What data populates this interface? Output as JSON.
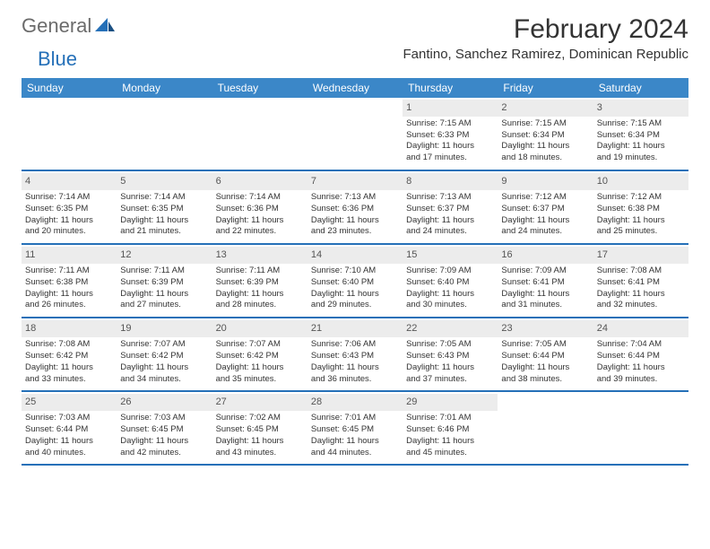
{
  "brand": {
    "word1": "General",
    "word2": "Blue"
  },
  "title": "February 2024",
  "location": "Fantino, Sanchez Ramirez, Dominican Republic",
  "colors": {
    "header_bg": "#3b87c8",
    "header_text": "#ffffff",
    "accent": "#2570b8",
    "daynum_bg": "#ececec",
    "text": "#333333",
    "logo_gray": "#6b6b6b"
  },
  "fonts": {
    "title_size": 30,
    "location_size": 15,
    "dayhead_size": 12,
    "cell_size": 9.5
  },
  "day_names": [
    "Sunday",
    "Monday",
    "Tuesday",
    "Wednesday",
    "Thursday",
    "Friday",
    "Saturday"
  ],
  "weeks": [
    [
      null,
      null,
      null,
      null,
      {
        "n": "1",
        "sr": "Sunrise: 7:15 AM",
        "ss": "Sunset: 6:33 PM",
        "d1": "Daylight: 11 hours",
        "d2": "and 17 minutes."
      },
      {
        "n": "2",
        "sr": "Sunrise: 7:15 AM",
        "ss": "Sunset: 6:34 PM",
        "d1": "Daylight: 11 hours",
        "d2": "and 18 minutes."
      },
      {
        "n": "3",
        "sr": "Sunrise: 7:15 AM",
        "ss": "Sunset: 6:34 PM",
        "d1": "Daylight: 11 hours",
        "d2": "and 19 minutes."
      }
    ],
    [
      {
        "n": "4",
        "sr": "Sunrise: 7:14 AM",
        "ss": "Sunset: 6:35 PM",
        "d1": "Daylight: 11 hours",
        "d2": "and 20 minutes."
      },
      {
        "n": "5",
        "sr": "Sunrise: 7:14 AM",
        "ss": "Sunset: 6:35 PM",
        "d1": "Daylight: 11 hours",
        "d2": "and 21 minutes."
      },
      {
        "n": "6",
        "sr": "Sunrise: 7:14 AM",
        "ss": "Sunset: 6:36 PM",
        "d1": "Daylight: 11 hours",
        "d2": "and 22 minutes."
      },
      {
        "n": "7",
        "sr": "Sunrise: 7:13 AM",
        "ss": "Sunset: 6:36 PM",
        "d1": "Daylight: 11 hours",
        "d2": "and 23 minutes."
      },
      {
        "n": "8",
        "sr": "Sunrise: 7:13 AM",
        "ss": "Sunset: 6:37 PM",
        "d1": "Daylight: 11 hours",
        "d2": "and 24 minutes."
      },
      {
        "n": "9",
        "sr": "Sunrise: 7:12 AM",
        "ss": "Sunset: 6:37 PM",
        "d1": "Daylight: 11 hours",
        "d2": "and 24 minutes."
      },
      {
        "n": "10",
        "sr": "Sunrise: 7:12 AM",
        "ss": "Sunset: 6:38 PM",
        "d1": "Daylight: 11 hours",
        "d2": "and 25 minutes."
      }
    ],
    [
      {
        "n": "11",
        "sr": "Sunrise: 7:11 AM",
        "ss": "Sunset: 6:38 PM",
        "d1": "Daylight: 11 hours",
        "d2": "and 26 minutes."
      },
      {
        "n": "12",
        "sr": "Sunrise: 7:11 AM",
        "ss": "Sunset: 6:39 PM",
        "d1": "Daylight: 11 hours",
        "d2": "and 27 minutes."
      },
      {
        "n": "13",
        "sr": "Sunrise: 7:11 AM",
        "ss": "Sunset: 6:39 PM",
        "d1": "Daylight: 11 hours",
        "d2": "and 28 minutes."
      },
      {
        "n": "14",
        "sr": "Sunrise: 7:10 AM",
        "ss": "Sunset: 6:40 PM",
        "d1": "Daylight: 11 hours",
        "d2": "and 29 minutes."
      },
      {
        "n": "15",
        "sr": "Sunrise: 7:09 AM",
        "ss": "Sunset: 6:40 PM",
        "d1": "Daylight: 11 hours",
        "d2": "and 30 minutes."
      },
      {
        "n": "16",
        "sr": "Sunrise: 7:09 AM",
        "ss": "Sunset: 6:41 PM",
        "d1": "Daylight: 11 hours",
        "d2": "and 31 minutes."
      },
      {
        "n": "17",
        "sr": "Sunrise: 7:08 AM",
        "ss": "Sunset: 6:41 PM",
        "d1": "Daylight: 11 hours",
        "d2": "and 32 minutes."
      }
    ],
    [
      {
        "n": "18",
        "sr": "Sunrise: 7:08 AM",
        "ss": "Sunset: 6:42 PM",
        "d1": "Daylight: 11 hours",
        "d2": "and 33 minutes."
      },
      {
        "n": "19",
        "sr": "Sunrise: 7:07 AM",
        "ss": "Sunset: 6:42 PM",
        "d1": "Daylight: 11 hours",
        "d2": "and 34 minutes."
      },
      {
        "n": "20",
        "sr": "Sunrise: 7:07 AM",
        "ss": "Sunset: 6:42 PM",
        "d1": "Daylight: 11 hours",
        "d2": "and 35 minutes."
      },
      {
        "n": "21",
        "sr": "Sunrise: 7:06 AM",
        "ss": "Sunset: 6:43 PM",
        "d1": "Daylight: 11 hours",
        "d2": "and 36 minutes."
      },
      {
        "n": "22",
        "sr": "Sunrise: 7:05 AM",
        "ss": "Sunset: 6:43 PM",
        "d1": "Daylight: 11 hours",
        "d2": "and 37 minutes."
      },
      {
        "n": "23",
        "sr": "Sunrise: 7:05 AM",
        "ss": "Sunset: 6:44 PM",
        "d1": "Daylight: 11 hours",
        "d2": "and 38 minutes."
      },
      {
        "n": "24",
        "sr": "Sunrise: 7:04 AM",
        "ss": "Sunset: 6:44 PM",
        "d1": "Daylight: 11 hours",
        "d2": "and 39 minutes."
      }
    ],
    [
      {
        "n": "25",
        "sr": "Sunrise: 7:03 AM",
        "ss": "Sunset: 6:44 PM",
        "d1": "Daylight: 11 hours",
        "d2": "and 40 minutes."
      },
      {
        "n": "26",
        "sr": "Sunrise: 7:03 AM",
        "ss": "Sunset: 6:45 PM",
        "d1": "Daylight: 11 hours",
        "d2": "and 42 minutes."
      },
      {
        "n": "27",
        "sr": "Sunrise: 7:02 AM",
        "ss": "Sunset: 6:45 PM",
        "d1": "Daylight: 11 hours",
        "d2": "and 43 minutes."
      },
      {
        "n": "28",
        "sr": "Sunrise: 7:01 AM",
        "ss": "Sunset: 6:45 PM",
        "d1": "Daylight: 11 hours",
        "d2": "and 44 minutes."
      },
      {
        "n": "29",
        "sr": "Sunrise: 7:01 AM",
        "ss": "Sunset: 6:46 PM",
        "d1": "Daylight: 11 hours",
        "d2": "and 45 minutes."
      },
      null,
      null
    ]
  ]
}
